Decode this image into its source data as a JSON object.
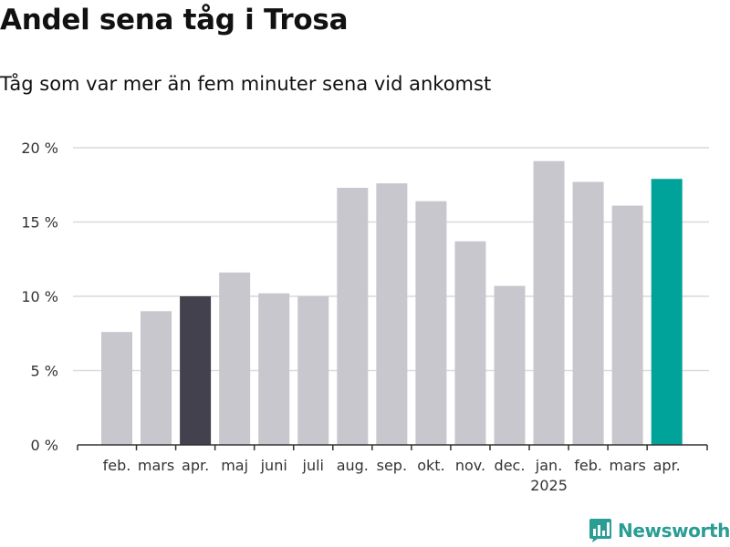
{
  "header": {
    "title": "Andel sena tåg i Trosa",
    "subtitle": "Tåg som var mer än fem minuter sena vid ankomst"
  },
  "brand": {
    "name": "Newsworthy",
    "icon": "bar-chart-logo-icon"
  },
  "colors": {
    "default_bar": "#c8c7cd",
    "prev_year_bar": "#43414d",
    "current_bar": "#00a39a",
    "gridline": "#d9d9d9",
    "axis": "#333333",
    "brand": "#2a9d94"
  },
  "chart_data": {
    "type": "bar",
    "categories": [
      "feb.",
      "mars",
      "apr.",
      "maj",
      "juni",
      "juli",
      "aug.",
      "sep.",
      "okt.",
      "nov.",
      "dec.",
      "jan.",
      "feb.",
      "mars",
      "apr."
    ],
    "year_label": {
      "category_index": 11,
      "text": "2025"
    },
    "values": [
      7.6,
      9.0,
      10.0,
      11.6,
      10.2,
      10.0,
      17.3,
      17.6,
      16.4,
      13.7,
      10.7,
      19.1,
      17.7,
      16.1,
      17.9
    ],
    "highlight": {
      "2": "prev_year_bar",
      "14": "current_bar"
    },
    "title": "Andel sena tåg i Trosa",
    "subtitle": "Tåg som var mer än fem minuter sena vid ankomst",
    "xlabel": "",
    "ylabel": "",
    "ylim": [
      0,
      20
    ],
    "yticks": [
      0,
      5,
      10,
      15,
      20
    ],
    "ytick_labels": [
      "0 %",
      "5 %",
      "10 %",
      "15 %",
      "20 %"
    ],
    "grid": true,
    "legend": "none"
  }
}
